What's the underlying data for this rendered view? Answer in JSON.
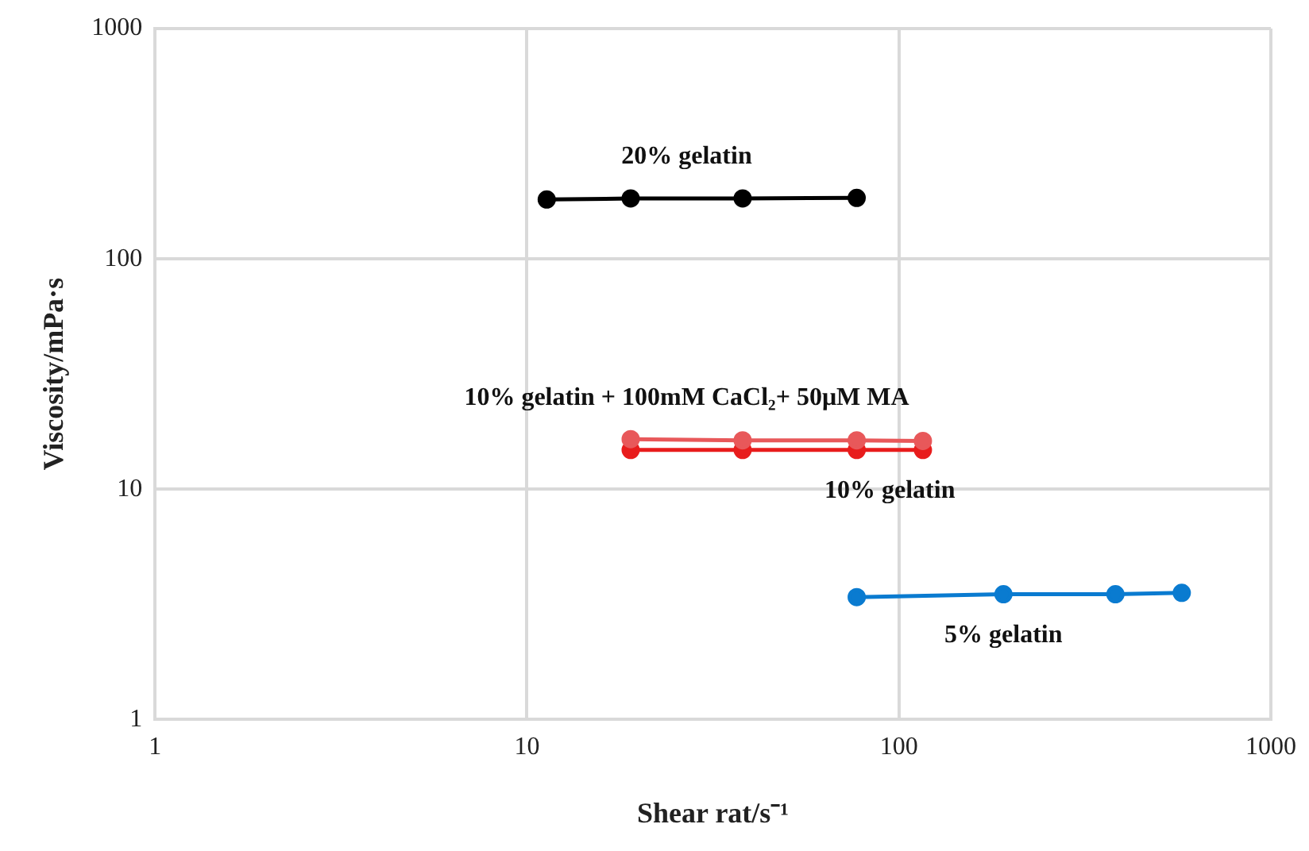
{
  "chart_data": {
    "type": "line",
    "xlabel": "Shear rat/s⁻¹",
    "ylabel": "Viscosity/mPa·s",
    "log": "xy",
    "xlim": [
      1,
      1000
    ],
    "xticks": [
      1,
      10,
      100,
      1000
    ],
    "ylim": [
      1,
      1000
    ],
    "yticks": [
      1,
      10,
      100,
      1000
    ],
    "grid": true,
    "legend": false,
    "marker": "circle",
    "line_style": "solid",
    "series": [
      {
        "name": "20% gelatin",
        "color": "#000000",
        "x": [
          11.3,
          19,
          38,
          77
        ],
        "values": [
          181,
          183,
          183,
          184
        ]
      },
      {
        "name": "10% gelatin + 100mM CaCl₂+ 50μM MA",
        "color": "#e8585a",
        "x": [
          19,
          38,
          77,
          116
        ],
        "values": [
          16.5,
          16.3,
          16.3,
          16.2
        ]
      },
      {
        "name": "10% gelatin",
        "color": "#e81c1c",
        "x": [
          19,
          38,
          77,
          116
        ],
        "values": [
          14.8,
          14.8,
          14.8,
          14.8
        ]
      },
      {
        "name": "5% gelatin",
        "color": "#0a7bd0",
        "x": [
          77,
          191,
          382,
          576
        ],
        "values": [
          3.4,
          3.5,
          3.5,
          3.55
        ]
      }
    ]
  }
}
